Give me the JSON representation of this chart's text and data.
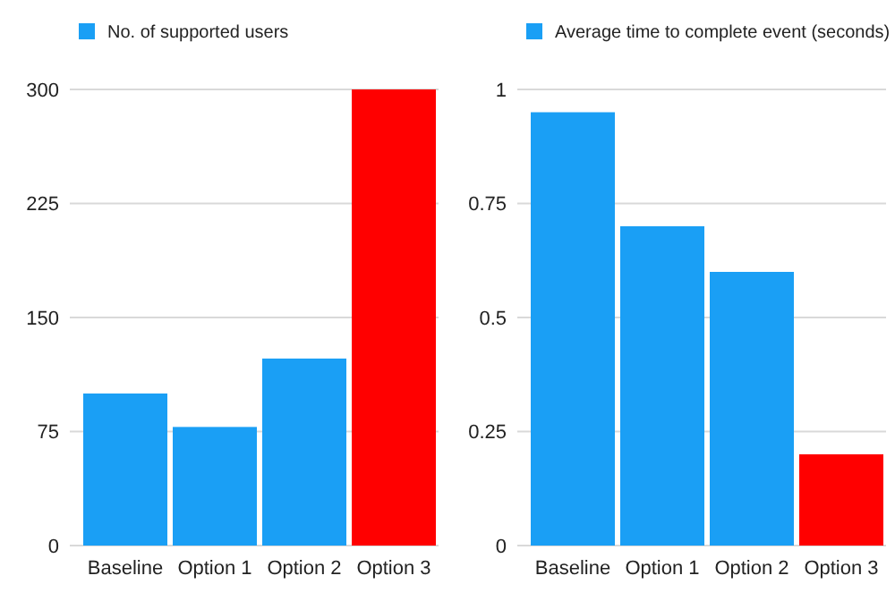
{
  "chart_data": [
    {
      "type": "bar",
      "categories": [
        "Baseline",
        "Option 1",
        "Option 2",
        "Option 3"
      ],
      "series": [
        {
          "name": "No. of supported users",
          "color": "#1a9ff5",
          "colors": [
            "#1a9ff5",
            "#1a9ff5",
            "#1a9ff5",
            "#ff0000"
          ],
          "values": [
            100,
            78,
            123,
            300
          ]
        }
      ],
      "ylim": [
        0,
        300
      ],
      "yticks": [
        0,
        75,
        150,
        225,
        300
      ],
      "grid": "y",
      "legend": "top left"
    },
    {
      "type": "bar",
      "categories": [
        "Baseline",
        "Option 1",
        "Option 2",
        "Option 3"
      ],
      "series": [
        {
          "name": "Average time to complete event (seconds)",
          "color": "#1a9ff5",
          "colors": [
            "#1a9ff5",
            "#1a9ff5",
            "#1a9ff5",
            "#ff0000"
          ],
          "values": [
            0.95,
            0.7,
            0.6,
            0.2
          ]
        }
      ],
      "ylim": [
        0,
        1
      ],
      "yticks": [
        0,
        0.25,
        0.5,
        0.75,
        1
      ],
      "grid": "y",
      "legend": "top left"
    }
  ]
}
